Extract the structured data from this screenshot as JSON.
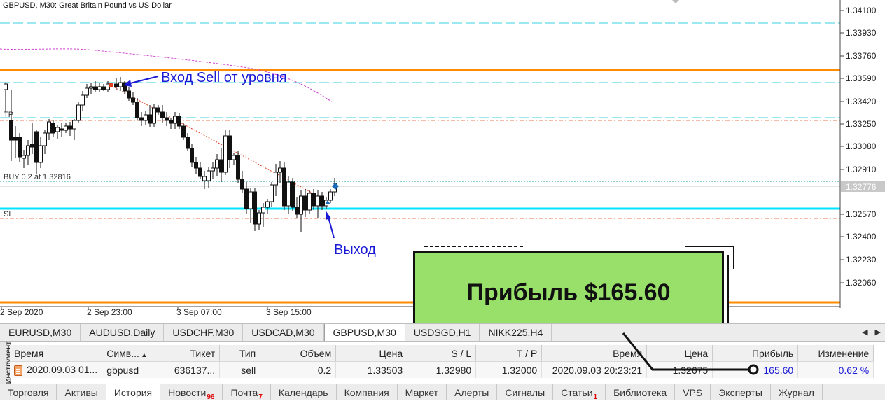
{
  "chart": {
    "title": "GBPUSD, M30:  Great Britain Pound vs US Dollar",
    "price_labels": [
      "1.34100",
      "1.33930",
      "1.33760",
      "1.33590",
      "1.33420",
      "1.33250",
      "1.33080",
      "1.32910",
      "1.32776",
      "1.32570",
      "1.32400",
      "1.32230",
      "1.32060"
    ],
    "current_price": "1.32776",
    "time_labels": [
      "2 Sep 2020",
      "2 Sep 23:00",
      "3 Sep 07:00",
      "3 Sep 15:00"
    ],
    "tp_label": "TP",
    "sl_label": "SL",
    "buy_label": "BUY 0.2 at 1.32816",
    "entry_annotation": "Вход Sell от уровня",
    "exit_annotation": "Выход",
    "colors": {
      "level": "#ff8c00",
      "sl_line": "#00e5ff",
      "dashed_cyan": "#39d0e0",
      "ma": "#d040d0",
      "annotation": "#1a1ad6"
    }
  },
  "symbol_tabs": [
    "EURUSD,M30",
    "AUDUSD,Daily",
    "USDCHF,M30",
    "USDCAD,M30",
    "GBPUSD,M30",
    "USDSGD,H1",
    "NIKK225,H4"
  ],
  "panel": {
    "vertical_label": "Инструмент",
    "headers": [
      "Время",
      "Симв...",
      "Тикет",
      "Тип",
      "Объем",
      "Цена",
      "S / L",
      "T / P",
      "Время",
      "Цена",
      "Прибыль",
      "Изменение"
    ],
    "row": [
      "2020.09.03 01...",
      "gbpusd",
      "636137...",
      "sell",
      "0.2",
      "1.33503",
      "1.32980",
      "1.32000",
      "2020.09.03 20:23:21",
      "1.32675",
      "165.60",
      "0.62 %"
    ]
  },
  "bottom_tabs": [
    {
      "label": "Торговля",
      "badge": ""
    },
    {
      "label": "Активы",
      "badge": ""
    },
    {
      "label": "История",
      "badge": ""
    },
    {
      "label": "Новости",
      "badge": "96"
    },
    {
      "label": "Почта",
      "badge": "7"
    },
    {
      "label": "Календарь",
      "badge": ""
    },
    {
      "label": "Компания",
      "badge": ""
    },
    {
      "label": "Маркет",
      "badge": ""
    },
    {
      "label": "Алерты",
      "badge": ""
    },
    {
      "label": "Сигналы",
      "badge": ""
    },
    {
      "label": "Статьи",
      "badge": "1"
    },
    {
      "label": "Библиотека",
      "badge": ""
    },
    {
      "label": "VPS",
      "badge": ""
    },
    {
      "label": "Эксперты",
      "badge": ""
    },
    {
      "label": "Журнал",
      "badge": ""
    }
  ],
  "profit_box": {
    "text": "Прибыль $165.60",
    "color": "#99e06a"
  }
}
